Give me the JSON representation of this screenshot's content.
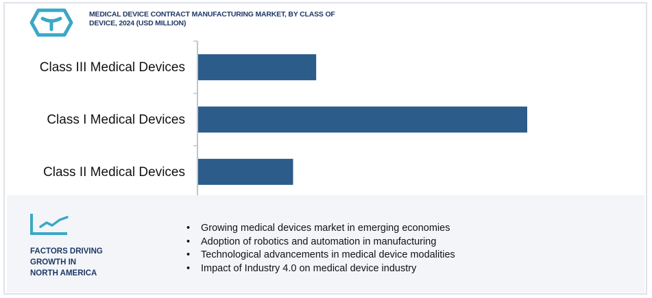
{
  "title": "MEDICAL DEVICE CONTRACT  MANUFACTURING  MARKET, BY CLASS OF DEVICE, 2024  (USD MILLION)",
  "logo_icon": "hexagon-y-logo-icon",
  "colors": {
    "bar": "#2b5c8a",
    "accent": "#3aa8c6",
    "title": "#1f3864",
    "panel": "#f3f5f9"
  },
  "chart_data": {
    "type": "bar",
    "orientation": "horizontal",
    "title": "MEDICAL DEVICE CONTRACT MANUFACTURING MARKET, BY CLASS OF DEVICE, 2024 (USD MILLION)",
    "categories": [
      "Class III Medical Devices",
      "Class I Medical Devices",
      "Class II Medical Devices"
    ],
    "values": [
      36,
      100,
      29
    ],
    "value_note": "relative magnitudes (no value labels shown)",
    "xlim": [
      0,
      100
    ],
    "xlabel": "",
    "ylabel": "",
    "grid": false
  },
  "factors": {
    "icon": "trend-line-icon",
    "heading": [
      "FACTORS DRIVING",
      "GROWTH IN",
      "NORTH AMERICA"
    ],
    "items": [
      "Growing medical devices market in emerging economies",
      "Adoption of robotics and automation in manufacturing",
      "Technological advancements in medical device modalities",
      "Impact of Industry  4.0 on medical device industry"
    ]
  }
}
